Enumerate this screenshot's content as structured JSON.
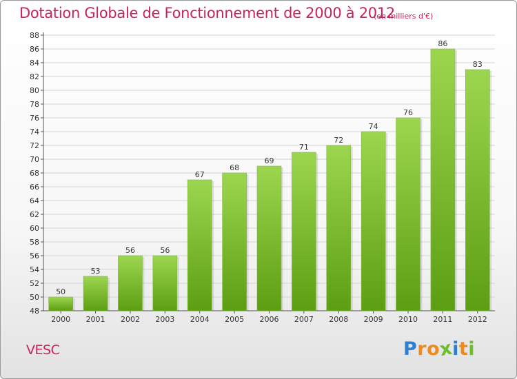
{
  "title": "Dotation Globale de Fonctionnement de 2000 à 2012",
  "subtitle": "(en milliers d'€)",
  "commune": "VESC",
  "logo": {
    "letters": [
      "P",
      "r",
      "o",
      "x",
      "i",
      "t",
      "i"
    ],
    "colors": [
      "#2f7fd1",
      "#f08a1c",
      "#f08a1c",
      "#6cbf2a",
      "#2f7fd1",
      "#f08a1c",
      "#6cbf2a"
    ]
  },
  "colors": {
    "title": "#c8245a",
    "bar_light": "#9cd64f",
    "bar_dark": "#5c9e12",
    "grid": "#d4d4d4"
  },
  "chart_data": {
    "type": "bar",
    "title": "Dotation Globale de Fonctionnement de 2000 à 2012",
    "subtitle": "(en milliers d'€)",
    "categories": [
      "2000",
      "2001",
      "2002",
      "2003",
      "2004",
      "2005",
      "2006",
      "2007",
      "2008",
      "2009",
      "2010",
      "2011",
      "2012"
    ],
    "values": [
      50,
      53,
      56,
      56,
      67,
      68,
      69,
      71,
      72,
      74,
      76,
      86,
      83
    ],
    "ylim": [
      48,
      88
    ],
    "yticks": [
      48,
      50,
      52,
      54,
      56,
      58,
      60,
      62,
      64,
      66,
      68,
      70,
      72,
      74,
      76,
      78,
      80,
      82,
      84,
      86,
      88
    ],
    "grid": true,
    "data_labels": true
  }
}
